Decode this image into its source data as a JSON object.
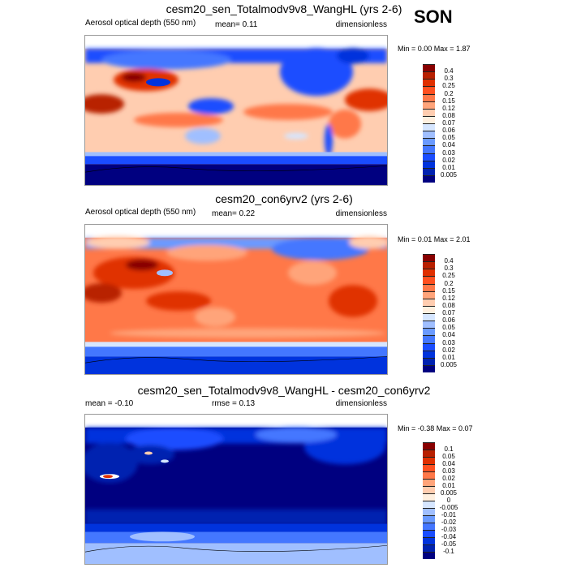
{
  "season": "SON",
  "colorbar_colors": [
    "#000080",
    "#0022b0",
    "#0033dd",
    "#1a4dff",
    "#4477ff",
    "#6a9aff",
    "#a0bfff",
    "#d6e6ff",
    "#fff0e0",
    "#ffcdb0",
    "#ffa47a",
    "#ff7848",
    "#ff5020",
    "#e03000",
    "#b82000",
    "#880000"
  ],
  "panels": [
    {
      "title": "cesm20_sen_Totalmodv9v8_WangHL (yrs 2-6)",
      "left": "Aerosol optical depth (550 nm)",
      "middle": "mean=   0.11",
      "right": "dimensionless",
      "minmax": "Min =   0.00 Max =   1.87",
      "levels": [
        "0.4",
        "0.3",
        "0.25",
        "0.2",
        "0.15",
        "0.12",
        "0.08",
        "0.07",
        "0.06",
        "0.05",
        "0.04",
        "0.03",
        "0.02",
        "0.01",
        "0.005"
      ]
    },
    {
      "title": "cesm20_con6yrv2 (yrs 2-6)",
      "left": "Aerosol optical depth (550 nm)",
      "middle": "mean=   0.22",
      "right": "dimensionless",
      "minmax": "Min =   0.01 Max =   2.01",
      "levels": [
        "0.4",
        "0.3",
        "0.25",
        "0.2",
        "0.15",
        "0.12",
        "0.08",
        "0.07",
        "0.06",
        "0.05",
        "0.04",
        "0.03",
        "0.02",
        "0.01",
        "0.005"
      ]
    },
    {
      "title": "cesm20_sen_Totalmodv9v8_WangHL - cesm20_con6yrv2",
      "left": "mean =  -0.10",
      "middle": "rmse =   0.13",
      "right": "dimensionless",
      "minmax": "Min =  -0.38 Max =   0.07",
      "levels": [
        "0.1",
        "0.05",
        "0.04",
        "0.03",
        "0.02",
        "0.01",
        "0.005",
        "0",
        "-0.005",
        "-0.01",
        "-0.02",
        "-0.03",
        "-0.04",
        "-0.05",
        "-0.1"
      ]
    }
  ]
}
